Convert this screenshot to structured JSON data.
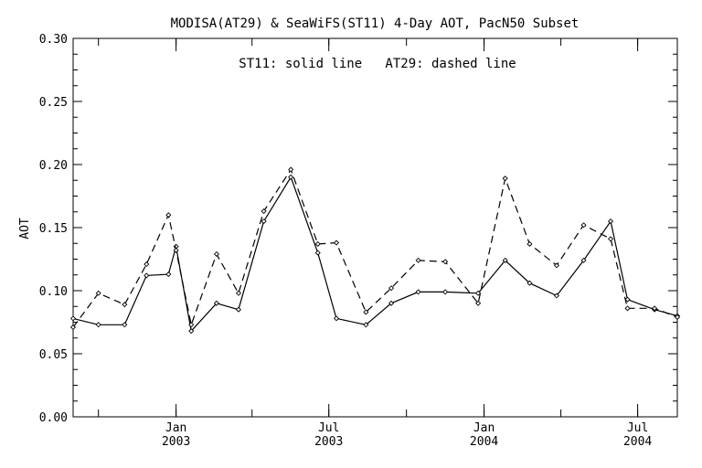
{
  "chart_data": {
    "type": "line",
    "title": "MODISA(AT29) & SeaWiFS(ST11) 4-Day AOT, PacN50 Subset",
    "annotation": "ST11: solid line   AT29: dashed line",
    "ylabel": "AOT",
    "xlabel": "",
    "ylim": [
      0.0,
      0.3
    ],
    "yticks": [
      "0.00",
      "0.05",
      "0.10",
      "0.15",
      "0.20",
      "0.25",
      "0.30"
    ],
    "xticks": [
      {
        "month": "Jan",
        "year": "2003",
        "date": "2003-01-01"
      },
      {
        "month": "Jul",
        "year": "2003",
        "date": "2003-07-01"
      },
      {
        "month": "Jan",
        "year": "2004",
        "date": "2004-01-01"
      },
      {
        "month": "Jul",
        "year": "2004",
        "date": "2004-07-01"
      }
    ],
    "xlim": [
      "2002-09-01",
      "2004-08-17"
    ],
    "grid": false,
    "series": [
      {
        "style": "solid",
        "x": [
          "2002-09-01",
          "2002-10-01",
          "2002-11-01",
          "2002-11-27",
          "2002-12-23",
          "2003-01-01",
          "2003-01-19",
          "2003-02-18",
          "2003-03-16",
          "2003-04-15",
          "2003-05-17",
          "2003-06-18",
          "2003-07-10",
          "2003-08-14",
          "2003-09-13",
          "2003-10-15",
          "2003-11-16",
          "2003-12-25",
          "2004-01-26",
          "2004-02-24",
          "2004-03-27",
          "2004-04-28",
          "2004-05-30",
          "2004-06-19",
          "2004-07-21",
          "2004-08-17"
        ],
        "values": [
          0.078,
          0.073,
          0.073,
          0.112,
          0.113,
          0.135,
          0.068,
          0.09,
          0.085,
          0.155,
          0.19,
          0.13,
          0.078,
          0.073,
          0.09,
          0.099,
          0.099,
          0.098,
          0.124,
          0.106,
          0.096,
          0.124,
          0.155,
          0.093,
          0.085,
          0.08
        ]
      },
      {
        "style": "dashed",
        "x": [
          "2002-09-01",
          "2002-10-01",
          "2002-11-01",
          "2002-11-27",
          "2002-12-23",
          "2003-01-01",
          "2003-01-19",
          "2003-02-18",
          "2003-03-16",
          "2003-04-15",
          "2003-05-17",
          "2003-06-18",
          "2003-07-10",
          "2003-08-14",
          "2003-09-13",
          "2003-10-15",
          "2003-11-16",
          "2003-12-25",
          "2004-01-26",
          "2004-02-24",
          "2004-03-27",
          "2004-04-28",
          "2004-05-30",
          "2004-06-19",
          "2004-07-21",
          "2004-08-17"
        ],
        "values": [
          0.071,
          0.098,
          0.089,
          0.121,
          0.16,
          0.132,
          0.073,
          0.129,
          0.098,
          0.163,
          0.196,
          0.137,
          0.138,
          0.083,
          0.102,
          0.124,
          0.123,
          0.09,
          0.189,
          0.137,
          0.12,
          0.152,
          0.141,
          0.086,
          0.086,
          0.079
        ]
      }
    ]
  }
}
